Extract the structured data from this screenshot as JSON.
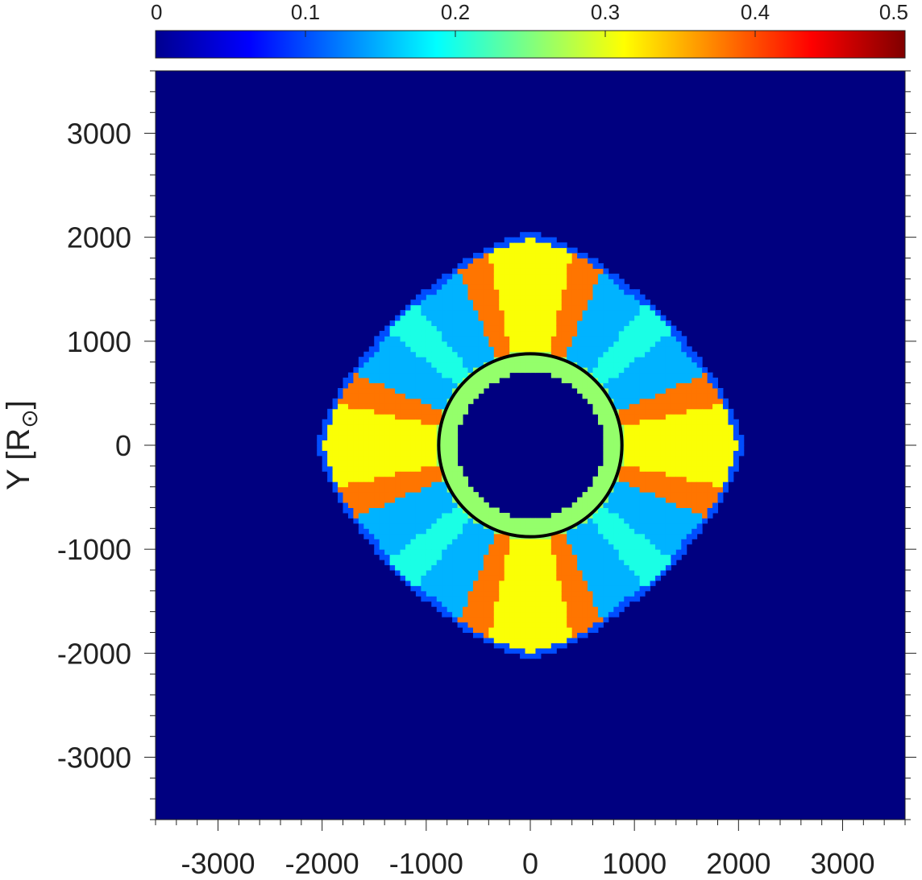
{
  "chart_data": {
    "type": "heatmap",
    "title": "",
    "xlabel": "",
    "ylabel": "Y [R",
    "ylabel_subscript": "⊙",
    "ylabel_close": "]",
    "xlim": [
      -3600,
      3600
    ],
    "ylim": [
      -3600,
      3600
    ],
    "xticks": [
      -3000,
      -2000,
      -1000,
      0,
      1000,
      2000,
      3000
    ],
    "yticks": [
      3000,
      2000,
      1000,
      0,
      -1000,
      -2000,
      -3000
    ],
    "minor_tick_step": 200,
    "grid": false,
    "colormap": "jet",
    "colorbar": {
      "position": "top",
      "range": [
        0,
        0.5
      ],
      "ticks": [
        0,
        0.1,
        0.2,
        0.3,
        0.4,
        0.5
      ],
      "tick_labels": [
        "0",
        "0.1",
        "0.2",
        "0.3",
        "0.4",
        "0.5"
      ]
    },
    "field": {
      "description_source": "structured ring of emission with 8 radial bands",
      "inner_hole_radius": 700,
      "outer_radius_mean": 1800,
      "outer_radius_bulge": 250,
      "background_value": 0.0,
      "hole_value": 0.0,
      "diffuse_value": 0.15,
      "band_value": 0.31,
      "band_edge_value": 0.38,
      "inner_ring_value": 0.26,
      "band_angles_deg": [
        0,
        90,
        180,
        270
      ],
      "band_halfwidth_deg": 22,
      "minor_band_angles_deg": [
        45,
        135,
        225,
        315
      ]
    },
    "overlay_circle": {
      "radius": 880,
      "color": "#000000"
    }
  }
}
